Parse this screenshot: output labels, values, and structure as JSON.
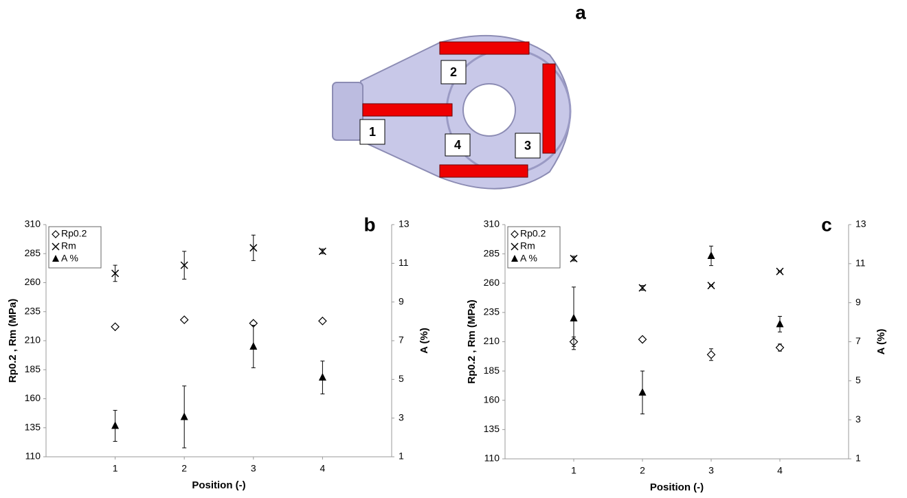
{
  "diagram": {
    "label": "a",
    "positions": [
      "1",
      "2",
      "3",
      "4"
    ]
  },
  "chart_data": [
    {
      "type": "scatter",
      "panel_label": "b",
      "x_label": "Position (-)",
      "y_label": "Rp0.2 , Rm (MPa)",
      "y2_label": "A (%)",
      "xlim": [
        0,
        5
      ],
      "xticks": [
        1,
        2,
        3,
        4
      ],
      "ylim": [
        110,
        310
      ],
      "yticks": [
        110,
        135,
        160,
        185,
        210,
        235,
        260,
        285,
        310
      ],
      "y2lim": [
        1,
        13
      ],
      "y2ticks": [
        1,
        3,
        5,
        7,
        9,
        11,
        13
      ],
      "legend": "top-left",
      "x": [
        1,
        2,
        3,
        4
      ],
      "series": [
        {
          "name": "Rp0.2",
          "marker": "diamond",
          "color": "#000000",
          "values": [
            222,
            228,
            225,
            227
          ],
          "errors": [
            1,
            1,
            1,
            1
          ]
        },
        {
          "name": "Rm",
          "marker": "cross",
          "color": "#000000",
          "values": [
            268,
            275,
            290,
            287
          ],
          "errors": [
            7,
            12,
            11,
            2
          ]
        },
        {
          "name": "A %",
          "marker": "triangle",
          "color": "#000000",
          "axis": "y2",
          "values": [
            2.6,
            3.06,
            6.7,
            5.1
          ],
          "errors": [
            0.8,
            1.6,
            1.1,
            0.85
          ]
        }
      ]
    },
    {
      "type": "scatter",
      "panel_label": "c",
      "x_label": "Position (-)",
      "y_label": "Rp0.2 , Rm (MPa)",
      "y2_label": "A (%)",
      "xlim": [
        0,
        5
      ],
      "xticks": [
        1,
        2,
        3,
        4
      ],
      "ylim": [
        110,
        310
      ],
      "yticks": [
        110,
        135,
        160,
        185,
        210,
        235,
        260,
        285,
        310
      ],
      "y2lim": [
        1,
        13
      ],
      "y2ticks": [
        1,
        3,
        5,
        7,
        9,
        11,
        13
      ],
      "legend": "top-left",
      "x": [
        1,
        2,
        3,
        4
      ],
      "series": [
        {
          "name": "Rp0.2",
          "marker": "diamond",
          "color": "#000000",
          "values": [
            210,
            212,
            199,
            205
          ],
          "errors": [
            4,
            0.5,
            5,
            3
          ]
        },
        {
          "name": "Rm",
          "marker": "cross",
          "color": "#000000",
          "values": [
            281,
            256,
            258,
            270
          ],
          "errors": [
            2,
            2,
            0.5,
            0.5
          ]
        },
        {
          "name": "A %",
          "marker": "triangle",
          "color": "#000000",
          "axis": "y2",
          "values": [
            8.2,
            4.4,
            11.4,
            7.9
          ],
          "errors": [
            1.6,
            1.1,
            0.5,
            0.4
          ]
        }
      ]
    }
  ]
}
